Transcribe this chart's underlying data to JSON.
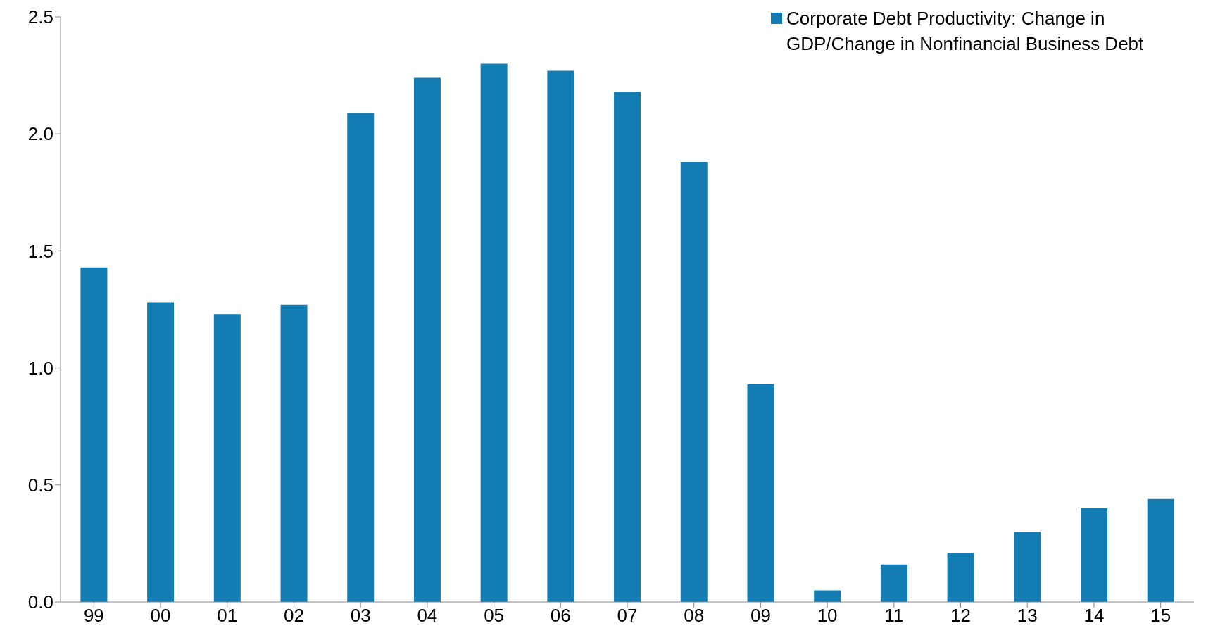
{
  "chart_data": {
    "type": "bar",
    "categories": [
      "99",
      "00",
      "01",
      "02",
      "03",
      "04",
      "05",
      "06",
      "07",
      "08",
      "09",
      "10",
      "11",
      "12",
      "13",
      "14",
      "15"
    ],
    "series": [
      {
        "name": "Corporate Debt Productivity: Change in GDP/Change in Nonfinancial Business Debt",
        "color": "#137db3",
        "values": [
          1.43,
          1.28,
          1.23,
          1.27,
          2.09,
          2.24,
          2.3,
          2.27,
          2.18,
          1.88,
          0.93,
          0.05,
          0.16,
          0.21,
          0.3,
          0.4,
          0.44
        ]
      }
    ],
    "ylim": [
      0,
      2.5
    ],
    "yticks": [
      {
        "value": 0,
        "label": "0.0"
      },
      {
        "value": 0.5,
        "label": "0.5"
      },
      {
        "value": 1,
        "label": "1.0"
      },
      {
        "value": 1.5,
        "label": "1.5"
      },
      {
        "value": 2,
        "label": "2.0"
      },
      {
        "value": 2.5,
        "label": "2.5"
      }
    ],
    "grid": false,
    "legend": "top right"
  }
}
